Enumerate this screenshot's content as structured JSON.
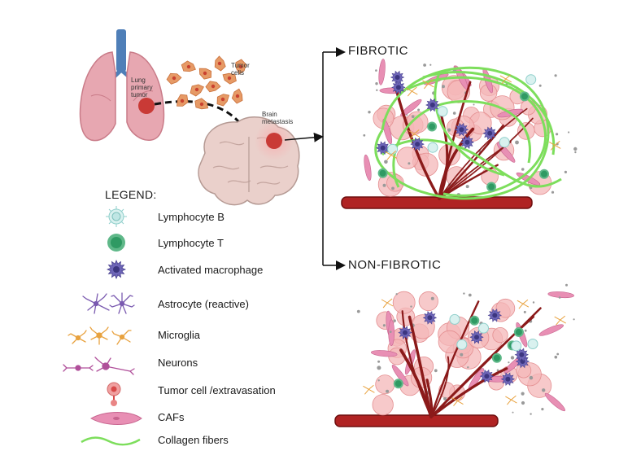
{
  "labels": {
    "lung": "Lung primary tumor",
    "tumor_cells": "Tumor cells",
    "brain": "Brain metastasis"
  },
  "sections": {
    "fibrotic": "FIBROTIC",
    "non_fibrotic": "NON-FIBROTIC"
  },
  "legend": {
    "title": "LEGEND:",
    "items": [
      {
        "label": "Lymphocyte B",
        "icon": "lymphocyte-b-icon"
      },
      {
        "label": "Lymphocyte T",
        "icon": "lymphocyte-t-icon"
      },
      {
        "label": "Activated macrophage",
        "icon": "macrophage-icon"
      },
      {
        "label": "Astrocyte (reactive)",
        "icon": "astrocyte-icon"
      },
      {
        "label": "Microglia",
        "icon": "microglia-icon"
      },
      {
        "label": "Neurons",
        "icon": "neuron-icon"
      },
      {
        "label": "Tumor cell /extravasation",
        "icon": "tumor-cell-icon"
      },
      {
        "label": "CAFs",
        "icon": "caf-icon"
      },
      {
        "label": "Collagen fibers",
        "icon": "collagen-fiber-icon"
      }
    ]
  },
  "colors": {
    "lung": "#e7a7b1",
    "trachea": "#4f7fb8",
    "tumor": "#c93a36",
    "tumor_cell_swarm": "#e69a66",
    "brain": "#ead0cb",
    "vessel": "#8b1a1a",
    "collagen": "#7dde5c",
    "lymphocyte_b": "#bfe6e4",
    "lymphocyte_t": "#2f9a63",
    "macrophage": "#6e66b8",
    "astrocyte": "#7a5ab0",
    "microglia": "#e8a23f",
    "neuron": "#b04f9a",
    "caf": "#e88fb4"
  }
}
